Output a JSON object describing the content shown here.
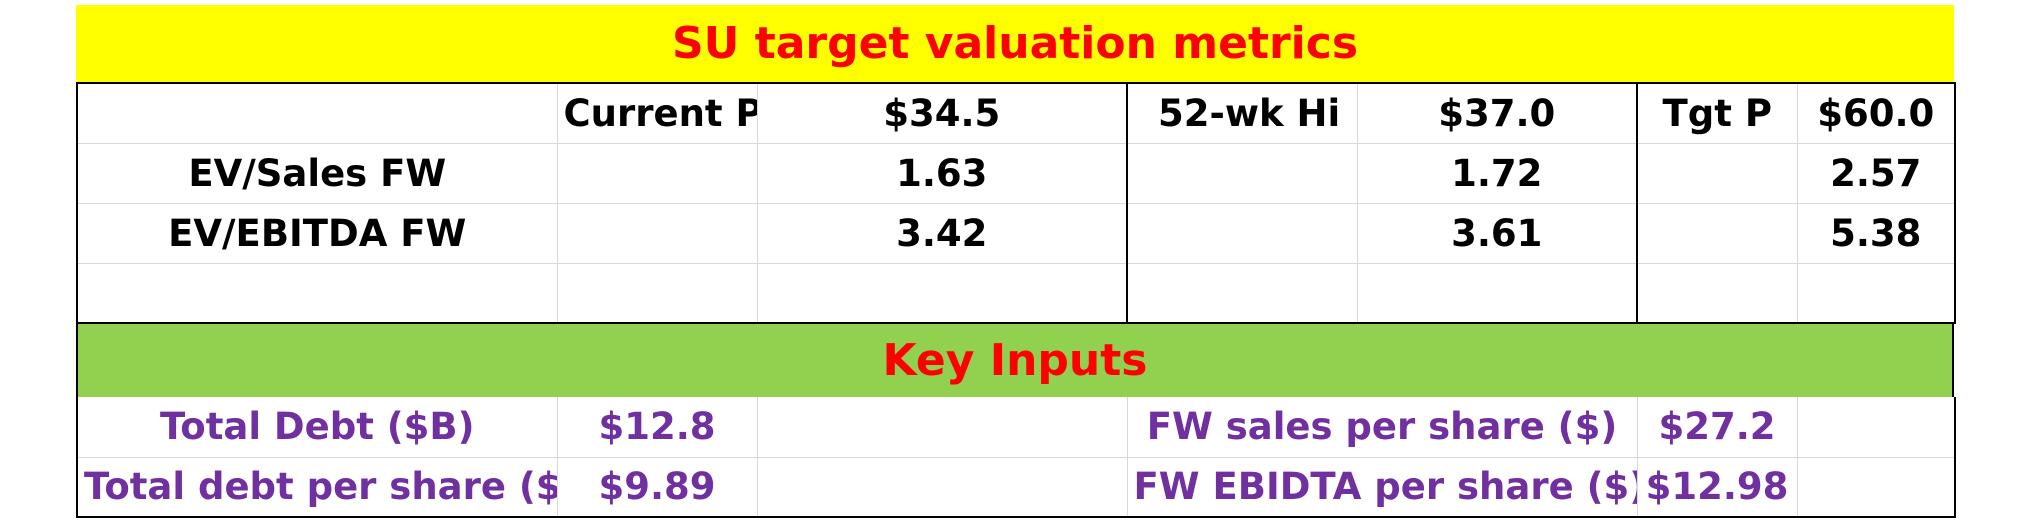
{
  "title": "SU target valuation metrics",
  "header": {
    "current_label": "Current P",
    "current_value": "$34.5",
    "high_label": "52-wk Hi",
    "high_value": "$37.0",
    "target_label": "Tgt P",
    "target_value": "$60.0"
  },
  "metrics": [
    {
      "label": "EV/Sales FW",
      "current": "1.63",
      "high": "1.72",
      "target": "2.57"
    },
    {
      "label": "EV/EBITDA FW",
      "current": "3.42",
      "high": "3.61",
      "target": "5.38"
    }
  ],
  "key_inputs_title": "Key Inputs",
  "inputs": [
    {
      "left_label": "Total Debt ($B)",
      "left_value": "$12.8",
      "right_label": "FW sales per share ($)",
      "right_value": "$27.2"
    },
    {
      "left_label": "Total debt per share ($)",
      "left_value": "$9.89",
      "right_label": "FW EBIDTA per share ($)",
      "right_value": "$12.98"
    }
  ],
  "colors": {
    "title_band": "#ffff00",
    "title_text": "#ff0000",
    "inputs_band": "#92d050",
    "inputs_text": "#7030a0"
  }
}
